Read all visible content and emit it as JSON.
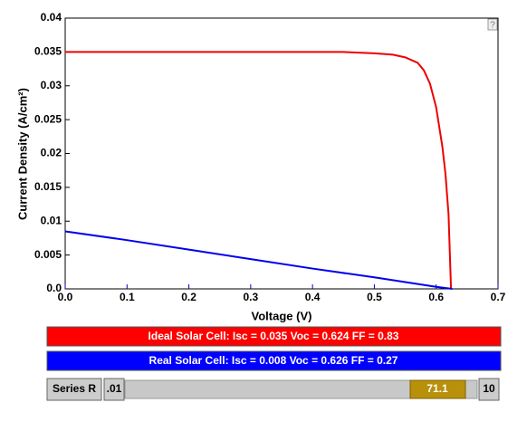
{
  "chart_data": {
    "type": "line",
    "y_label": "Current Density (A/cm²)",
    "x_label": "Voltage (V)",
    "xlim": [
      0,
      0.7
    ],
    "xticks": [
      {
        "value": 0,
        "label": "0.0"
      },
      0.1,
      0.2,
      0.3,
      0.4,
      0.5,
      0.6,
      0.7
    ],
    "ylim": [
      0,
      0.04
    ],
    "yticks": [
      {
        "value": 0,
        "label": "0.0"
      },
      0.005,
      0.01,
      0.015,
      0.02,
      0.025,
      0.03,
      0.035,
      0.04
    ],
    "series": [
      {
        "name": "Ideal Solar Cell",
        "color": "#ee0000",
        "x": [
          0,
          0.1,
          0.2,
          0.3,
          0.4,
          0.45,
          0.5,
          0.53,
          0.55,
          0.57,
          0.58,
          0.59,
          0.6,
          0.61,
          0.615,
          0.62,
          0.624
        ],
        "values": [
          0.035,
          0.035,
          0.035,
          0.035,
          0.035,
          0.035,
          0.0348,
          0.0346,
          0.0342,
          0.0334,
          0.0323,
          0.0303,
          0.0268,
          0.021,
          0.017,
          0.011,
          0
        ]
      },
      {
        "name": "Real Solar Cell",
        "color": "#0000ee",
        "x": [
          0,
          0.1,
          0.2,
          0.3,
          0.4,
          0.5,
          0.55,
          0.6,
          0.626
        ],
        "values": [
          0.0085,
          0.0072,
          0.0058,
          0.0044,
          0.003,
          0.0017,
          0.001,
          0.0003,
          0
        ]
      }
    ]
  },
  "panels": [
    {
      "text": "Ideal Solar Cell:  Isc = 0.035   Voc = 0.624   FF = 0.83",
      "color": "#ff0000"
    },
    {
      "text": "Real Solar Cell:  Isc = 0.008   Voc = 0.626   FF = 0.27",
      "color": "#0000ff"
    }
  ],
  "slider": {
    "label": "Series R",
    "min_label": ".01",
    "value_label": "71.1",
    "max_label": "10"
  },
  "help": "?"
}
